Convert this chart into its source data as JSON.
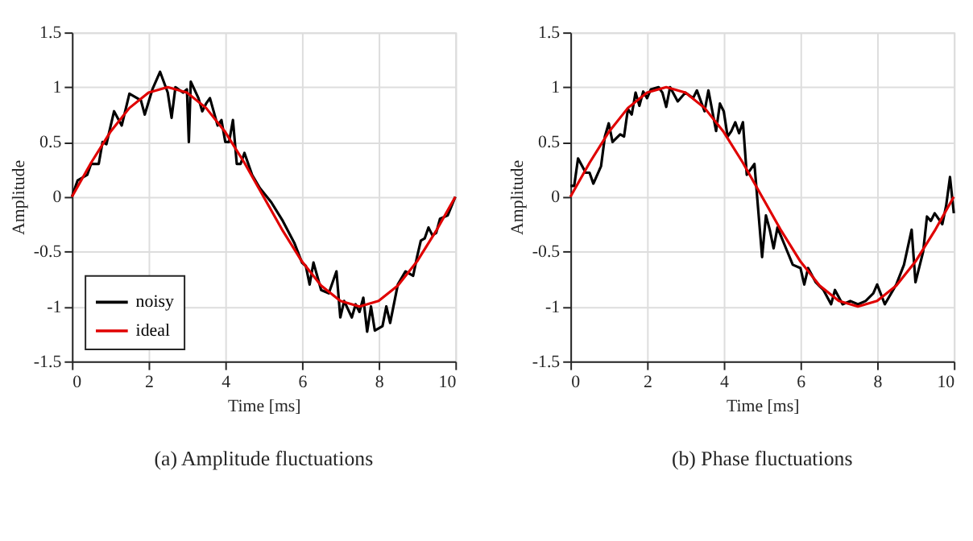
{
  "chart_data": [
    {
      "type": "line",
      "title": "(a) Amplitude fluctuations",
      "xlabel": "Time [ms]",
      "ylabel": "Amplitude",
      "xlim": [
        0,
        10
      ],
      "ylim": [
        -1.5,
        1.5
      ],
      "xticks": [
        0,
        2,
        4,
        6,
        8,
        10
      ],
      "yticks": [
        -1.5,
        -1,
        -0.5,
        0,
        0.5,
        1,
        1.5
      ],
      "grid": true,
      "legend": "bottom left",
      "line_style": "solid",
      "series": [
        {
          "name": "noisy",
          "color": "#000000",
          "x": [
            0,
            0.15,
            0.4,
            0.5,
            0.7,
            0.8,
            0.9,
            1.1,
            1.3,
            1.5,
            1.8,
            1.9,
            2.1,
            2.3,
            2.5,
            2.6,
            2.7,
            2.9,
            3.0,
            3.05,
            3.1,
            3.3,
            3.4,
            3.5,
            3.6,
            3.8,
            3.9,
            4.0,
            4.1,
            4.2,
            4.3,
            4.4,
            4.5,
            4.7,
            4.9,
            5.2,
            5.5,
            5.8,
            6.0,
            6.1,
            6.2,
            6.3,
            6.5,
            6.7,
            6.9,
            7.0,
            7.1,
            7.3,
            7.4,
            7.5,
            7.6,
            7.7,
            7.8,
            7.9,
            8.1,
            8.2,
            8.3,
            8.5,
            8.7,
            8.9,
            9.0,
            9.1,
            9.2,
            9.3,
            9.4,
            9.5,
            9.6,
            9.8,
            10
          ],
          "values": [
            0,
            0.15,
            0.2,
            0.3,
            0.3,
            0.5,
            0.48,
            0.78,
            0.65,
            0.94,
            0.88,
            0.75,
            0.98,
            1.14,
            0.95,
            0.72,
            1.0,
            0.95,
            0.98,
            0.5,
            1.05,
            0.9,
            0.78,
            0.85,
            0.9,
            0.65,
            0.7,
            0.5,
            0.5,
            0.7,
            0.3,
            0.3,
            0.4,
            0.2,
            0.08,
            -0.05,
            -0.22,
            -0.42,
            -0.6,
            -0.63,
            -0.8,
            -0.6,
            -0.85,
            -0.88,
            -0.68,
            -1.1,
            -0.95,
            -1.1,
            -0.98,
            -1.05,
            -0.92,
            -1.23,
            -1.0,
            -1.22,
            -1.18,
            -1.0,
            -1.15,
            -0.8,
            -0.68,
            -0.72,
            -0.55,
            -0.4,
            -0.38,
            -0.28,
            -0.35,
            -0.33,
            -0.2,
            -0.17,
            0
          ]
        },
        {
          "name": "ideal",
          "color": "#e00000",
          "x": [
            0,
            0.5,
            1,
            1.5,
            2,
            2.5,
            3,
            3.5,
            4,
            4.5,
            5,
            5.5,
            6,
            6.5,
            7,
            7.5,
            8,
            8.5,
            9,
            9.5,
            10
          ],
          "values": [
            0,
            0.31,
            0.59,
            0.81,
            0.95,
            1,
            0.95,
            0.81,
            0.59,
            0.31,
            0,
            -0.31,
            -0.59,
            -0.81,
            -0.95,
            -1,
            -0.95,
            -0.81,
            -0.59,
            -0.31,
            0
          ]
        }
      ]
    },
    {
      "type": "line",
      "title": "(b) Phase fluctuations",
      "xlabel": "Time [ms]",
      "ylabel": "Amplitude",
      "xlim": [
        0,
        10
      ],
      "ylim": [
        -1.5,
        1.5
      ],
      "xticks": [
        0,
        2,
        4,
        6,
        8,
        10
      ],
      "yticks": [
        -1.5,
        -1,
        -0.5,
        0,
        0.5,
        1,
        1.5
      ],
      "grid": true,
      "legend": "bottom left",
      "line_style": "solid",
      "series": [
        {
          "name": "noisy",
          "color": "#000000",
          "x": [
            0,
            0.1,
            0.2,
            0.4,
            0.5,
            0.6,
            0.8,
            0.9,
            1.0,
            1.1,
            1.3,
            1.4,
            1.5,
            1.6,
            1.7,
            1.8,
            1.9,
            2.0,
            2.1,
            2.3,
            2.4,
            2.5,
            2.6,
            2.8,
            3.0,
            3.2,
            3.3,
            3.5,
            3.6,
            3.8,
            3.9,
            4.0,
            4.1,
            4.2,
            4.3,
            4.4,
            4.5,
            4.6,
            4.8,
            5.0,
            5.1,
            5.2,
            5.3,
            5.4,
            5.6,
            5.8,
            6.0,
            6.1,
            6.2,
            6.4,
            6.6,
            6.8,
            6.9,
            7.1,
            7.3,
            7.5,
            7.7,
            7.9,
            8.0,
            8.2,
            8.5,
            8.7,
            8.9,
            9.0,
            9.2,
            9.3,
            9.4,
            9.5,
            9.7,
            9.8,
            9.9,
            10
          ],
          "values": [
            0.1,
            0.1,
            0.35,
            0.22,
            0.22,
            0.12,
            0.28,
            0.55,
            0.67,
            0.5,
            0.57,
            0.55,
            0.8,
            0.75,
            0.95,
            0.83,
            0.96,
            0.9,
            0.98,
            1.0,
            0.95,
            0.82,
            1.0,
            0.87,
            0.95,
            0.9,
            0.97,
            0.78,
            0.97,
            0.6,
            0.85,
            0.78,
            0.55,
            0.6,
            0.68,
            0.58,
            0.68,
            0.2,
            0.3,
            -0.55,
            -0.17,
            -0.3,
            -0.47,
            -0.28,
            -0.45,
            -0.62,
            -0.65,
            -0.8,
            -0.65,
            -0.78,
            -0.85,
            -0.98,
            -0.85,
            -0.98,
            -0.95,
            -0.98,
            -0.95,
            -0.88,
            -0.8,
            -0.98,
            -0.8,
            -0.62,
            -0.3,
            -0.78,
            -0.5,
            -0.18,
            -0.22,
            -0.15,
            -0.25,
            -0.08,
            0.18,
            -0.15
          ]
        },
        {
          "name": "ideal",
          "color": "#e00000",
          "x": [
            0,
            0.5,
            1,
            1.5,
            2,
            2.5,
            3,
            3.5,
            4,
            4.5,
            5,
            5.5,
            6,
            6.5,
            7,
            7.5,
            8,
            8.5,
            9,
            9.5,
            10
          ],
          "values": [
            0,
            0.31,
            0.59,
            0.81,
            0.95,
            1,
            0.95,
            0.81,
            0.59,
            0.31,
            0,
            -0.31,
            -0.59,
            -0.81,
            -0.95,
            -1,
            -0.95,
            -0.81,
            -0.59,
            -0.31,
            0
          ]
        }
      ]
    }
  ]
}
